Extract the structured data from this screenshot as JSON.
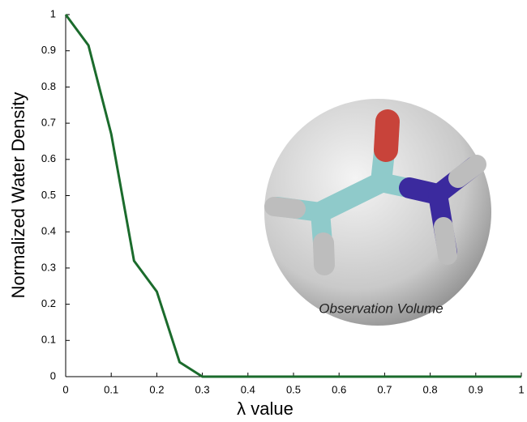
{
  "chart_data": {
    "type": "line",
    "xlabel": "λ value",
    "ylabel": "Normalized Water Density",
    "annotation": "Observation Volume",
    "x": [
      0,
      0.05,
      0.1,
      0.15,
      0.2,
      0.25,
      0.3,
      0.35,
      0.4,
      0.45,
      0.5,
      0.55,
      0.6,
      0.65,
      0.7,
      0.75,
      0.8,
      0.85,
      0.9,
      0.95,
      1
    ],
    "series": [
      {
        "color": "#1b6b2c",
        "values": [
          1,
          0.915,
          0.67,
          0.32,
          0.235,
          0.04,
          0,
          0,
          0,
          0,
          0,
          0,
          0,
          0,
          0,
          0,
          0,
          0,
          0,
          0,
          0
        ]
      }
    ],
    "xlim": [
      0,
      1
    ],
    "xticks": [
      0,
      0.1,
      0.2,
      0.3,
      0.4,
      0.5,
      0.6,
      0.7,
      0.8,
      0.9,
      1
    ],
    "ylim": [
      0,
      1
    ],
    "yticks": [
      0,
      0.1,
      0.2,
      0.3,
      0.4,
      0.5,
      0.6,
      0.7,
      0.8,
      0.9,
      1
    ]
  }
}
